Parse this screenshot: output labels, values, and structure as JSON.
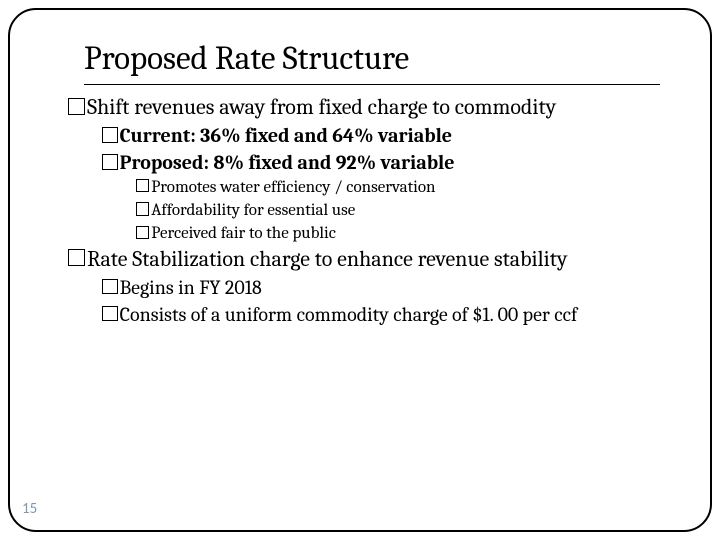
{
  "title": "Proposed Rate Structure",
  "page_number": "15",
  "colors": {
    "page_num": "#8097b0",
    "text": "#000000",
    "border": "#000000"
  },
  "bullets": {
    "l1_1": "Shift revenues away from fixed charge to commodity",
    "l2_1": "Current: 36% fixed and 64% variable",
    "l2_2": "Proposed: 8% fixed and 92% variable",
    "l3_1": "Promotes water efficiency / conservation",
    "l3_2": "Affordability for essential use",
    "l3_3": "Perceived fair to the public",
    "l1_2": "Rate Stabilization charge to enhance revenue stability",
    "l2_3": "Begins in FY 2018",
    "l2_4": "Consists of a uniform commodity charge of $1. 00 per ccf"
  }
}
